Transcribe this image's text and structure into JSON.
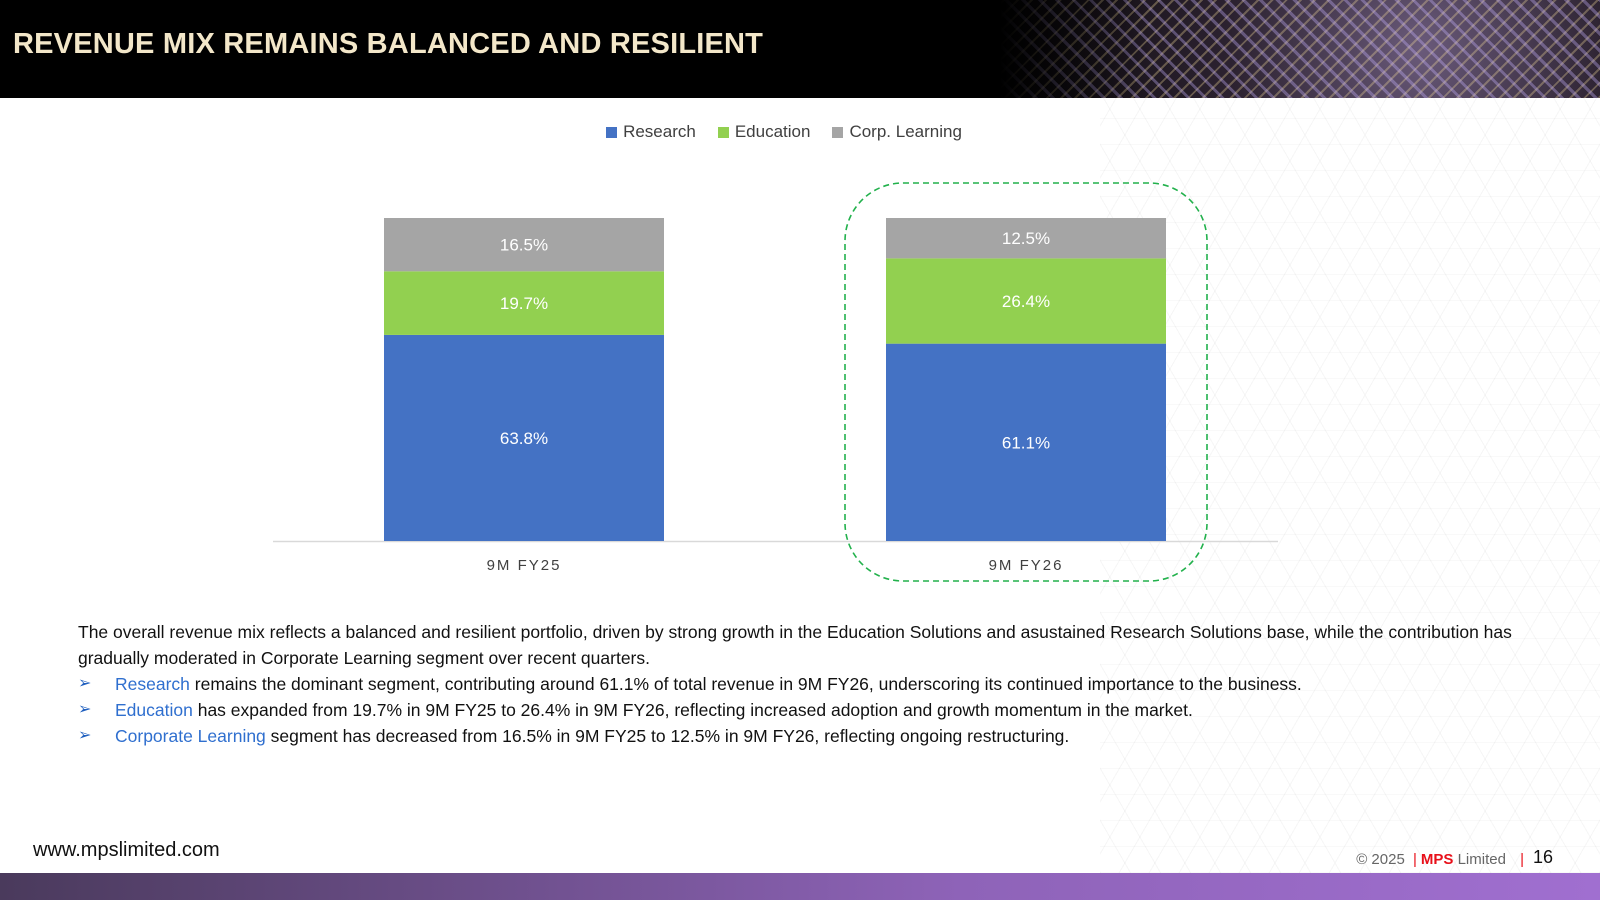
{
  "header": {
    "title": "REVENUE MIX REMAINS BALANCED AND RESILIENT"
  },
  "colors": {
    "research": "#4472c4",
    "education": "#92d050",
    "corp_learning": "#a5a5a5",
    "highlight_border": "#22b14c"
  },
  "legend": [
    {
      "label": "Research",
      "color": "#4472c4"
    },
    {
      "label": "Education",
      "color": "#92d050"
    },
    {
      "label": "Corp. Learning",
      "color": "#a5a5a5"
    }
  ],
  "chart_data": {
    "type": "bar",
    "stacked": true,
    "categories": [
      "9M FY25",
      "9M FY26"
    ],
    "series": [
      {
        "name": "Research",
        "values": [
          63.8,
          61.1
        ],
        "labels": [
          "63.8%",
          "61.1%"
        ]
      },
      {
        "name": "Education",
        "values": [
          19.7,
          26.4
        ],
        "labels": [
          "19.7%",
          "26.4%"
        ]
      },
      {
        "name": "Corp. Learning",
        "values": [
          16.5,
          12.5
        ],
        "labels": [
          "16.5%",
          "12.5%"
        ]
      }
    ],
    "ylim": [
      0,
      100
    ],
    "highlighted_category": "9M FY26",
    "title": "",
    "xlabel": "",
    "ylabel": ""
  },
  "summary": {
    "intro": "The overall revenue mix reflects a balanced and resilient portfolio, driven by strong growth in the Education Solutions and asustained Research Solutions base, while the contribution has gradually moderated in Corporate Learning segment over recent quarters.",
    "bullets": [
      {
        "highlight": "Research",
        "text": " remains the dominant segment, contributing around 61.1% of total revenue in 9M FY26, underscoring its continued importance to the business."
      },
      {
        "highlight": "Education",
        "text": " has expanded from 19.7% in 9M FY25 to 26.4% in 9M FY26, reflecting increased adoption and growth momentum in the market."
      },
      {
        "highlight": "Corporate Learning",
        "text": " segment has decreased from 16.5% in 9M FY25 to 12.5% in 9M FY26, reflecting ongoing restructuring."
      }
    ]
  },
  "footer": {
    "website": "www.mpslimited.com",
    "copyright": "© 2025",
    "company_brand": "MPS",
    "company_suffix": "Limited",
    "page_number": "16"
  }
}
